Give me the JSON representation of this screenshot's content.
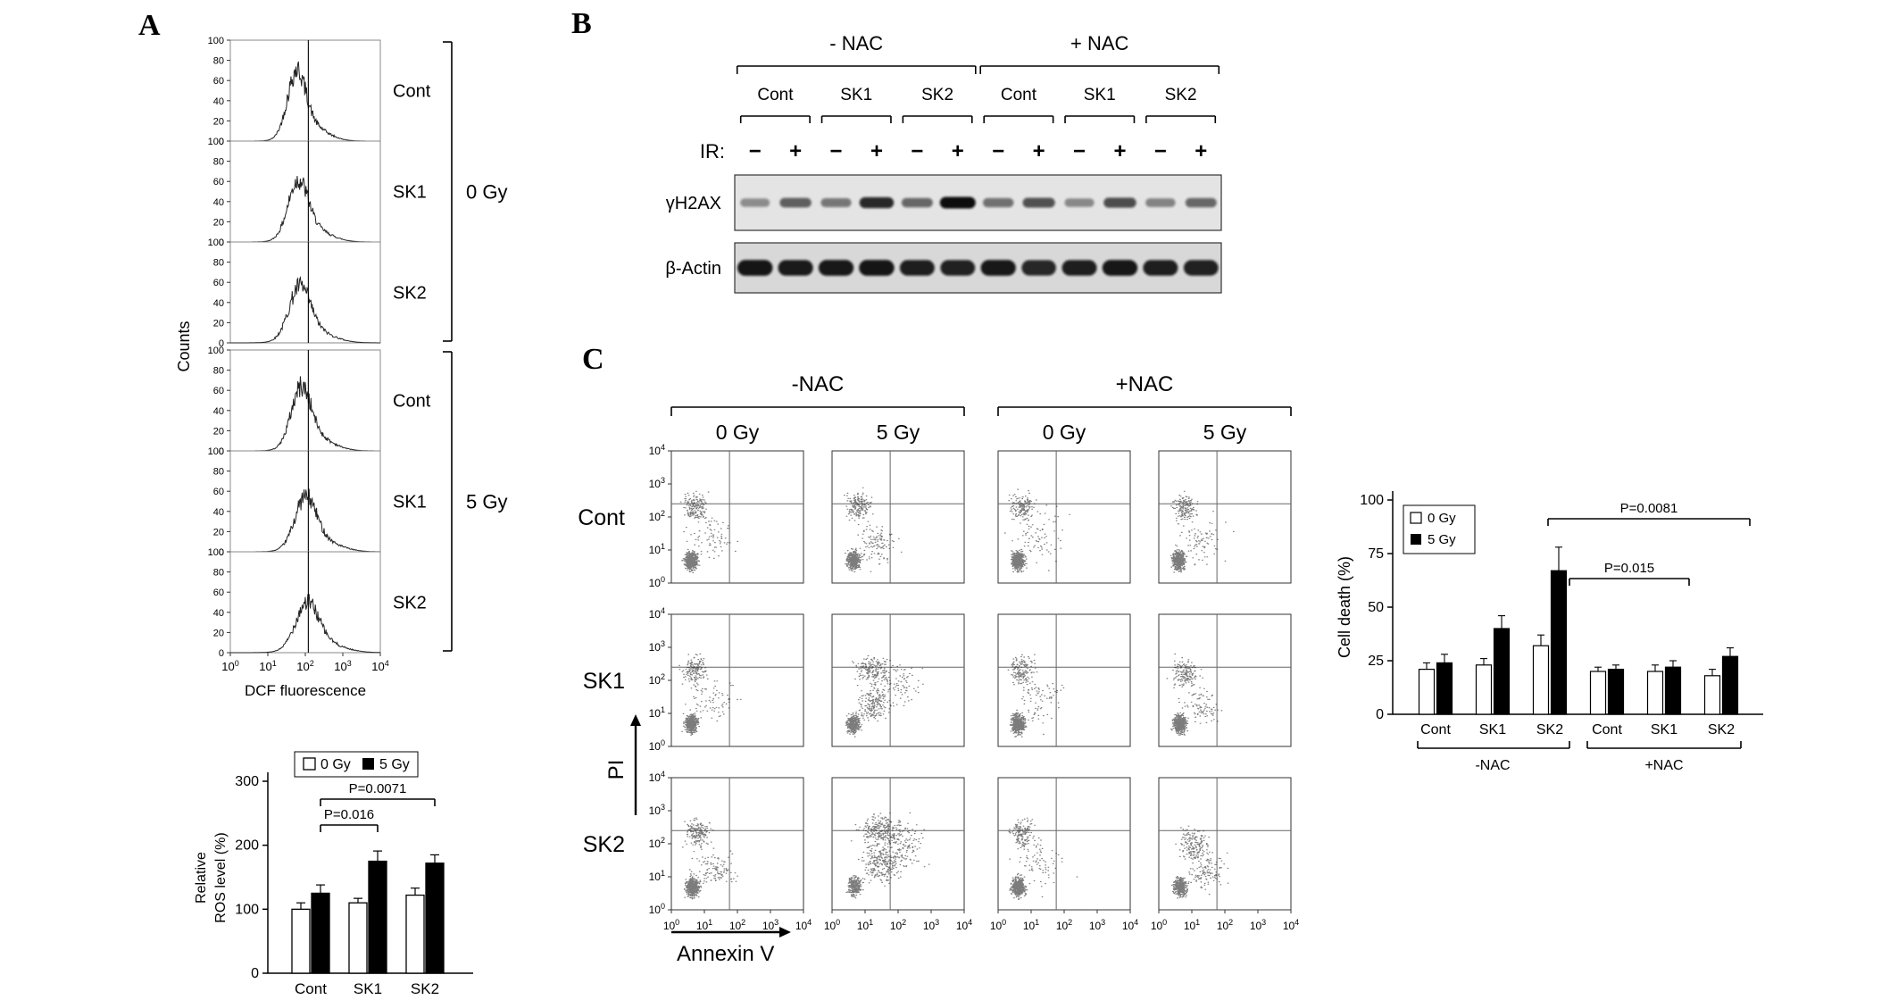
{
  "panelA": {
    "label": "A",
    "hist": {
      "ylabel": "Counts",
      "xlabel": "DCF  fluorescence",
      "xticks": [
        "10^0",
        "10^1",
        "10^2",
        "10^3",
        "10^4"
      ],
      "ytick_values": [
        0,
        20,
        40,
        60,
        80,
        100
      ],
      "row_labels": [
        "Cont",
        "SK1",
        "SK2",
        "Cont",
        "SK1",
        "SK2"
      ],
      "group_labels": [
        "0 Gy",
        "5 Gy"
      ],
      "refline": 0.52,
      "curves": [
        {
          "peak": 0.44,
          "height": 0.6,
          "width": 0.06
        },
        {
          "peak": 0.45,
          "height": 0.52,
          "width": 0.065
        },
        {
          "peak": 0.46,
          "height": 0.47,
          "width": 0.07
        },
        {
          "peak": 0.47,
          "height": 0.54,
          "width": 0.065
        },
        {
          "peak": 0.5,
          "height": 0.46,
          "width": 0.07
        },
        {
          "peak": 0.51,
          "height": 0.42,
          "width": 0.075
        }
      ]
    }
  },
  "panelB": {
    "label": "B",
    "nac_groups": [
      "- NAC",
      "+ NAC"
    ],
    "lane_groups": [
      "Cont",
      "SK1",
      "SK2",
      "Cont",
      "SK1",
      "SK2"
    ],
    "ir_label": "IR:",
    "ir_signs": [
      "−",
      "+",
      "−",
      "+",
      "−",
      "+",
      "−",
      "+",
      "−",
      "+",
      "−",
      "+"
    ],
    "blot_rows": [
      {
        "label": "γH2AX",
        "intensities": [
          0.3,
          0.55,
          0.42,
          0.85,
          0.5,
          1.0,
          0.45,
          0.62,
          0.32,
          0.65,
          0.35,
          0.5
        ]
      },
      {
        "label": "β-Actin",
        "intensities": [
          0.95,
          0.92,
          0.93,
          0.95,
          0.9,
          0.88,
          0.93,
          0.85,
          0.9,
          0.94,
          0.9,
          0.88
        ]
      }
    ]
  },
  "panelC": {
    "label": "C",
    "nac_groups": [
      "-NAC",
      "+NAC"
    ],
    "col_labels": [
      "0 Gy",
      "5 Gy",
      "0 Gy",
      "5 Gy"
    ],
    "row_labels": [
      "Cont",
      "SK1",
      "SK2"
    ],
    "xlabel": "Annexin V",
    "ylabel": "PI",
    "yticks": [
      "10^4",
      "10^3",
      "10^2",
      "10^1",
      "10^0"
    ],
    "xticks": [
      "10^0",
      "10^1",
      "10^2",
      "10^3",
      "10^4"
    ],
    "plots": [
      {
        "row": "Cont",
        "col": "-NAC 0 Gy",
        "clusters": [
          [
            500,
            0.15,
            0.17,
            0.05,
            0.07
          ],
          [
            160,
            0.18,
            0.58,
            0.09,
            0.11
          ],
          [
            80,
            0.3,
            0.35,
            0.2,
            0.2
          ]
        ]
      },
      {
        "row": "Cont",
        "col": "-NAC 5 Gy",
        "clusters": [
          [
            460,
            0.16,
            0.17,
            0.05,
            0.07
          ],
          [
            180,
            0.2,
            0.58,
            0.1,
            0.11
          ],
          [
            120,
            0.33,
            0.3,
            0.17,
            0.15
          ]
        ]
      },
      {
        "row": "Cont",
        "col": "+NAC 0 Gy",
        "clusters": [
          [
            500,
            0.15,
            0.17,
            0.05,
            0.07
          ],
          [
            160,
            0.18,
            0.58,
            0.09,
            0.11
          ],
          [
            80,
            0.3,
            0.35,
            0.2,
            0.2
          ]
        ]
      },
      {
        "row": "Cont",
        "col": "+NAC 5 Gy",
        "clusters": [
          [
            490,
            0.15,
            0.17,
            0.05,
            0.07
          ],
          [
            160,
            0.19,
            0.57,
            0.09,
            0.11
          ],
          [
            90,
            0.31,
            0.33,
            0.19,
            0.18
          ]
        ]
      },
      {
        "row": "SK1",
        "col": "-NAC 0 Gy",
        "clusters": [
          [
            500,
            0.15,
            0.17,
            0.05,
            0.07
          ],
          [
            160,
            0.18,
            0.58,
            0.09,
            0.11
          ],
          [
            80,
            0.3,
            0.35,
            0.2,
            0.2
          ]
        ]
      },
      {
        "row": "SK1",
        "col": "-NAC 5 Gy",
        "clusters": [
          [
            380,
            0.16,
            0.17,
            0.05,
            0.07
          ],
          [
            200,
            0.32,
            0.32,
            0.13,
            0.13
          ],
          [
            180,
            0.3,
            0.58,
            0.13,
            0.11
          ],
          [
            90,
            0.5,
            0.48,
            0.17,
            0.17
          ]
        ]
      },
      {
        "row": "SK1",
        "col": "+NAC 0 Gy",
        "clusters": [
          [
            500,
            0.15,
            0.17,
            0.05,
            0.07
          ],
          [
            160,
            0.18,
            0.58,
            0.09,
            0.11
          ],
          [
            80,
            0.3,
            0.35,
            0.2,
            0.2
          ]
        ]
      },
      {
        "row": "SK1",
        "col": "+NAC 5 Gy",
        "clusters": [
          [
            450,
            0.16,
            0.17,
            0.05,
            0.07
          ],
          [
            160,
            0.2,
            0.55,
            0.1,
            0.12
          ],
          [
            90,
            0.32,
            0.3,
            0.16,
            0.14
          ]
        ]
      },
      {
        "row": "SK2",
        "col": "-NAC 0 Gy",
        "clusters": [
          [
            460,
            0.16,
            0.17,
            0.05,
            0.07
          ],
          [
            180,
            0.2,
            0.58,
            0.1,
            0.11
          ],
          [
            120,
            0.33,
            0.3,
            0.17,
            0.15
          ]
        ]
      },
      {
        "row": "SK2",
        "col": "-NAC 5 Gy",
        "clusters": [
          [
            280,
            0.17,
            0.18,
            0.055,
            0.07
          ],
          [
            260,
            0.37,
            0.35,
            0.15,
            0.14
          ],
          [
            220,
            0.35,
            0.6,
            0.15,
            0.11
          ],
          [
            150,
            0.53,
            0.5,
            0.19,
            0.18
          ]
        ]
      },
      {
        "row": "SK2",
        "col": "+NAC 0 Gy",
        "clusters": [
          [
            500,
            0.15,
            0.17,
            0.05,
            0.07
          ],
          [
            160,
            0.18,
            0.58,
            0.09,
            0.11
          ],
          [
            80,
            0.3,
            0.35,
            0.2,
            0.2
          ]
        ]
      },
      {
        "row": "SK2",
        "col": "+NAC 5 Gy",
        "clusters": [
          [
            420,
            0.16,
            0.17,
            0.05,
            0.07
          ],
          [
            170,
            0.26,
            0.5,
            0.12,
            0.13
          ],
          [
            120,
            0.36,
            0.3,
            0.15,
            0.14
          ]
        ]
      }
    ]
  },
  "chart_data": [
    {
      "id": "ros",
      "type": "bar",
      "title": "Relative ROS level",
      "ylabel_lines": [
        "Relative",
        "ROS level (%)"
      ],
      "ylabel": "Relative ROS level (%)",
      "ylim": [
        0,
        300
      ],
      "yticks": [
        0,
        100,
        200,
        300
      ],
      "categories": [
        "Cont",
        "SK1",
        "SK2"
      ],
      "series": [
        {
          "name": "0 Gy",
          "fill": "#ffffff",
          "values": [
            100,
            110,
            122
          ],
          "errors": [
            10,
            7,
            11
          ]
        },
        {
          "name": "5 Gy",
          "fill": "#000000",
          "values": [
            125,
            175,
            172
          ],
          "errors": [
            13,
            16,
            13
          ]
        }
      ],
      "annotations": [
        {
          "text": "P=0.016",
          "from": 0,
          "to": 1
        },
        {
          "text": "P=0.0071",
          "from": 0,
          "to": 2
        }
      ],
      "legend_position": "top",
      "grid": false
    },
    {
      "id": "death",
      "type": "bar",
      "title": "Cell death",
      "ylabel": "Cell death (%)",
      "ylim": [
        0,
        100
      ],
      "yticks": [
        0,
        25,
        50,
        75,
        100
      ],
      "categories": [
        "Cont",
        "SK1",
        "SK2",
        "Cont",
        "SK1",
        "SK2"
      ],
      "group_labels": [
        "-NAC",
        "+NAC"
      ],
      "series": [
        {
          "name": "0 Gy",
          "fill": "#ffffff",
          "values": [
            21,
            23,
            32,
            20,
            20,
            18
          ],
          "errors": [
            3,
            3,
            5,
            2,
            3,
            3
          ]
        },
        {
          "name": "5 Gy",
          "fill": "#000000",
          "values": [
            24,
            40,
            67,
            21,
            22,
            27
          ],
          "errors": [
            4,
            6,
            11,
            2,
            3,
            4
          ]
        }
      ],
      "annotations": [
        {
          "text": "P=0.015",
          "from": 2,
          "to": 4
        },
        {
          "text": "P=0.0081",
          "from": 2,
          "to": 5
        }
      ],
      "legend_position": "top-left",
      "grid": false
    }
  ]
}
